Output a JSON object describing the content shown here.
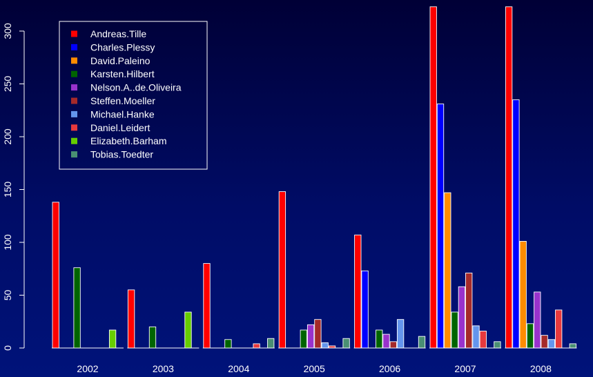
{
  "chart_data": {
    "type": "bar",
    "title": "",
    "xlabel": "",
    "ylabel": "",
    "categories": [
      "2002",
      "2003",
      "2004",
      "2005",
      "2006",
      "2007",
      "2008"
    ],
    "ylim": [
      0,
      320
    ],
    "yticks": [
      0,
      50,
      100,
      150,
      200,
      250,
      300
    ],
    "grid": false,
    "legend_position": "top-left",
    "series": [
      {
        "name": "Andreas.Tille",
        "color": "#ff0000",
        "values": [
          138,
          55,
          80,
          148,
          107,
          323,
          323
        ]
      },
      {
        "name": "Charles.Plessy",
        "color": "#0000ff",
        "values": [
          0,
          0,
          0,
          0,
          73,
          231,
          235
        ]
      },
      {
        "name": "David.Paleino",
        "color": "#ff8c00",
        "values": [
          0,
          0,
          0,
          0,
          0,
          147,
          101
        ]
      },
      {
        "name": "Karsten.Hilbert",
        "color": "#006400",
        "values": [
          76,
          20,
          8,
          17,
          17,
          34,
          23
        ]
      },
      {
        "name": "Nelson.A..de.Oliveira",
        "color": "#9932cc",
        "values": [
          0,
          0,
          0,
          22,
          13,
          58,
          53
        ]
      },
      {
        "name": "Steffen.Moeller",
        "color": "#a52a2a",
        "values": [
          0,
          0,
          0,
          27,
          6,
          71,
          12
        ]
      },
      {
        "name": "Michael.Hanke",
        "color": "#6495ed",
        "values": [
          0,
          0,
          0,
          5,
          27,
          21,
          8
        ]
      },
      {
        "name": "Daniel.Leidert",
        "color": "#e8393d",
        "values": [
          0,
          0,
          4,
          2,
          0,
          16,
          36
        ]
      },
      {
        "name": "Elizabeth.Barham",
        "color": "#66cd00",
        "values": [
          17,
          34,
          0,
          0,
          0,
          0,
          0
        ]
      },
      {
        "name": "Tobias.Toedter",
        "color": "#4a8f73",
        "values": [
          0,
          0,
          9,
          9,
          11,
          6,
          4
        ]
      }
    ]
  }
}
